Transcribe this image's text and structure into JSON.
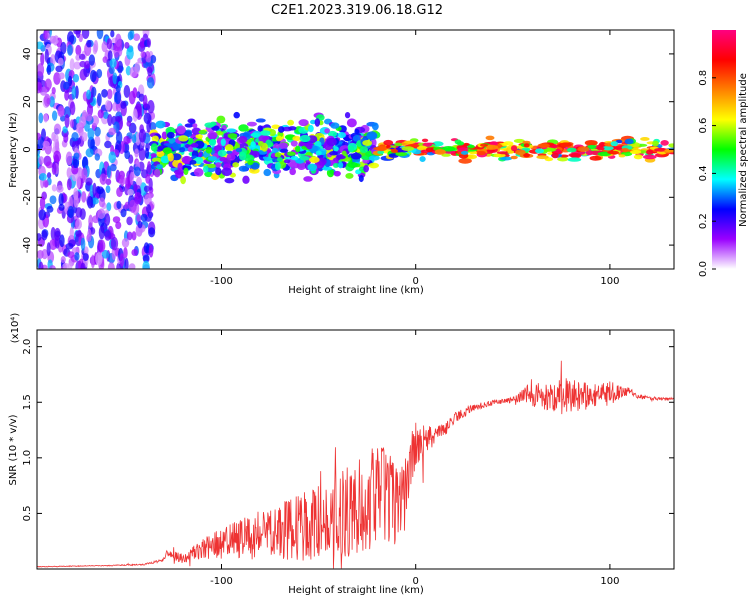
{
  "figure_title": "C2E1.2023.319.06.18.G12",
  "chart_data": [
    {
      "type": "heatmap",
      "title": "C2E1.2023.319.06.18.G12",
      "xlabel": "Height of straight line (km)",
      "ylabel": "Frequency (Hz)",
      "xlim": [
        -195,
        133
      ],
      "ylim": [
        -50,
        50
      ],
      "x_ticks": [
        -100,
        0,
        100
      ],
      "y_ticks": [
        -40,
        -20,
        0,
        20,
        40
      ],
      "colorbar": {
        "label": "Normalized spectral amplitude",
        "range": [
          0.0,
          1.0
        ],
        "ticks": [
          "0.0",
          "0.2",
          "0.4",
          "0.6",
          "0.8"
        ],
        "colormap": [
          "#ffffff",
          "#9a00ff",
          "#0000ff",
          "#00ffff",
          "#00ff00",
          "#ffff00",
          "#ff8000",
          "#ff0000",
          "#ff0080"
        ]
      },
      "regions": [
        {
          "x_range": [
            -195,
            -135
          ],
          "freq_range": [
            -50,
            50
          ],
          "amplitude_range": [
            0.05,
            0.35
          ],
          "description_level": "scattered"
        },
        {
          "x_range": [
            -135,
            -20
          ],
          "freq_range": [
            -12,
            12
          ],
          "amplitude_range": [
            0.1,
            0.65
          ]
        },
        {
          "x_range": [
            -20,
            133
          ],
          "freq_range": [
            -4,
            4
          ],
          "amplitude_range": [
            0.2,
            1.0
          ]
        }
      ]
    },
    {
      "type": "line",
      "xlabel": "Height of straight line (km)",
      "ylabel": "SNR (10 * v/v)",
      "y_multiplier": "(x10⁴)",
      "xlim": [
        -195,
        133
      ],
      "ylim": [
        0,
        21500
      ],
      "x_ticks": [
        -100,
        0,
        100
      ],
      "y_ticks": [
        {
          "value": 5000,
          "label": "0.5"
        },
        {
          "value": 10000,
          "label": "1.0"
        },
        {
          "value": 15000,
          "label": "1.5"
        },
        {
          "value": 20000,
          "label": "2.0"
        }
      ],
      "color": "#ee3333",
      "series": [
        {
          "x": [
            -195,
            -180,
            -160,
            -140,
            -130,
            -128,
            -120,
            -110,
            -100,
            -90,
            -80,
            -70,
            -60,
            -50,
            -40,
            -30,
            -20,
            -15,
            -10,
            -5,
            0,
            5,
            10,
            15,
            20,
            25,
            30,
            40,
            50,
            55,
            60,
            65,
            70,
            75,
            80,
            85,
            90,
            95,
            100,
            105,
            110,
            115,
            120,
            125,
            133
          ],
          "y": [
            200,
            250,
            300,
            400,
            800,
            1500,
            900,
            1800,
            2300,
            2700,
            3000,
            3300,
            3700,
            4200,
            4800,
            5600,
            6400,
            6800,
            5500,
            8000,
            11000,
            11500,
            12000,
            12500,
            13600,
            14100,
            14500,
            15000,
            15200,
            15500,
            15900,
            15600,
            15400,
            15700,
            15700,
            15600,
            15500,
            15800,
            16000,
            15900,
            16000,
            15500,
            15400,
            15300,
            15300
          ],
          "noise_envelope": [
            30,
            30,
            40,
            60,
            120,
            300,
            500,
            900,
            1400,
            1800,
            2200,
            2600,
            3000,
            3400,
            3800,
            4400,
            4800,
            4200,
            3600,
            3000,
            2200,
            1400,
            900,
            600,
            500,
            400,
            300,
            250,
            250,
            700,
            1300,
            1300,
            1300,
            1800,
            1700,
            1400,
            1100,
            1000,
            900,
            800,
            300,
            200,
            150,
            150,
            150
          ]
        }
      ]
    }
  ]
}
